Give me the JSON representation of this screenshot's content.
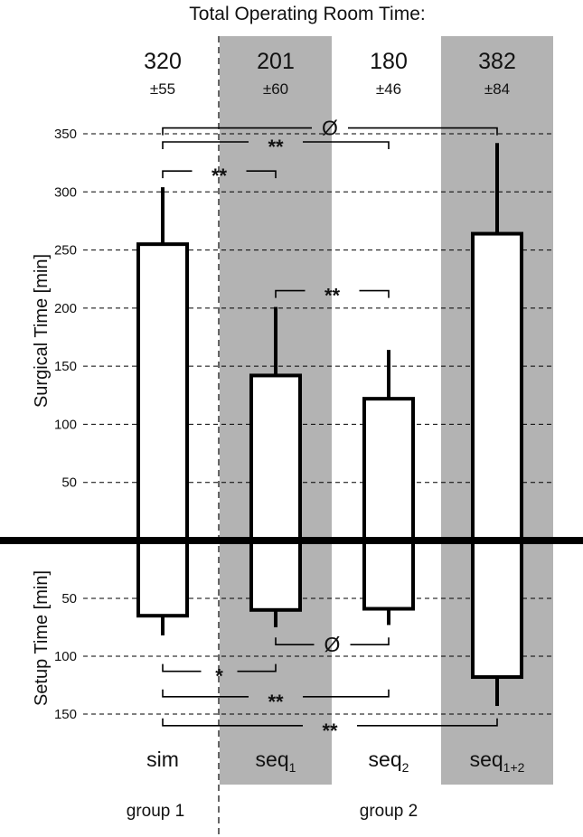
{
  "chart_data": {
    "type": "bar",
    "title": "Total Operating Room Time:",
    "categories": [
      {
        "id": "sim",
        "base": "sim",
        "sub": ""
      },
      {
        "id": "seq1",
        "base": "seq",
        "sub": "1"
      },
      {
        "id": "seq2",
        "base": "seq",
        "sub": "2"
      },
      {
        "id": "seq12",
        "base": "seq",
        "sub": "1+2"
      }
    ],
    "totals": [
      {
        "value": "320",
        "sd": "±55"
      },
      {
        "value": "201",
        "sd": "±60"
      },
      {
        "value": "180",
        "sd": "±46"
      },
      {
        "value": "382",
        "sd": "±84"
      }
    ],
    "shaded_categories": [
      "seq1",
      "seq12"
    ],
    "upper_panel": {
      "ylabel": "Surgical Time [min]",
      "ylim": [
        0,
        350
      ],
      "ticks": [
        50,
        100,
        150,
        200,
        250,
        300,
        350
      ],
      "series": [
        {
          "values": [
            255,
            142,
            122,
            264
          ],
          "errors": [
            49,
            59,
            42,
            78
          ]
        }
      ]
    },
    "lower_panel": {
      "ylabel": "Setup Time [min]",
      "ylim": [
        0,
        150
      ],
      "ticks": [
        50,
        100,
        150
      ],
      "series": [
        {
          "values": [
            65,
            60,
            59,
            118
          ],
          "errors": [
            17,
            15,
            14,
            25
          ]
        }
      ]
    },
    "groups": [
      {
        "label": "group 1",
        "categories": [
          "sim"
        ]
      },
      {
        "label": "group 2",
        "categories": [
          "seq1",
          "seq2",
          "seq12"
        ]
      }
    ],
    "significance": [
      {
        "panel": "upper",
        "from": "sim",
        "to": "seq12",
        "label": "Ø",
        "level": 355
      },
      {
        "panel": "upper",
        "from": "sim",
        "to": "seq2",
        "label": "**",
        "level": 343
      },
      {
        "panel": "upper",
        "from": "sim",
        "to": "seq1",
        "label": "**",
        "level": 318
      },
      {
        "panel": "upper",
        "from": "seq1",
        "to": "seq2",
        "label": "**",
        "level": 215
      },
      {
        "panel": "lower",
        "from": "seq1",
        "to": "seq2",
        "label": "Ø",
        "level": 90
      },
      {
        "panel": "lower",
        "from": "sim",
        "to": "seq1",
        "label": "*",
        "level": 113
      },
      {
        "panel": "lower",
        "from": "sim",
        "to": "seq2",
        "label": "**",
        "level": 135
      },
      {
        "panel": "lower",
        "from": "sim",
        "to": "seq12",
        "label": "**",
        "level": 160
      }
    ]
  }
}
